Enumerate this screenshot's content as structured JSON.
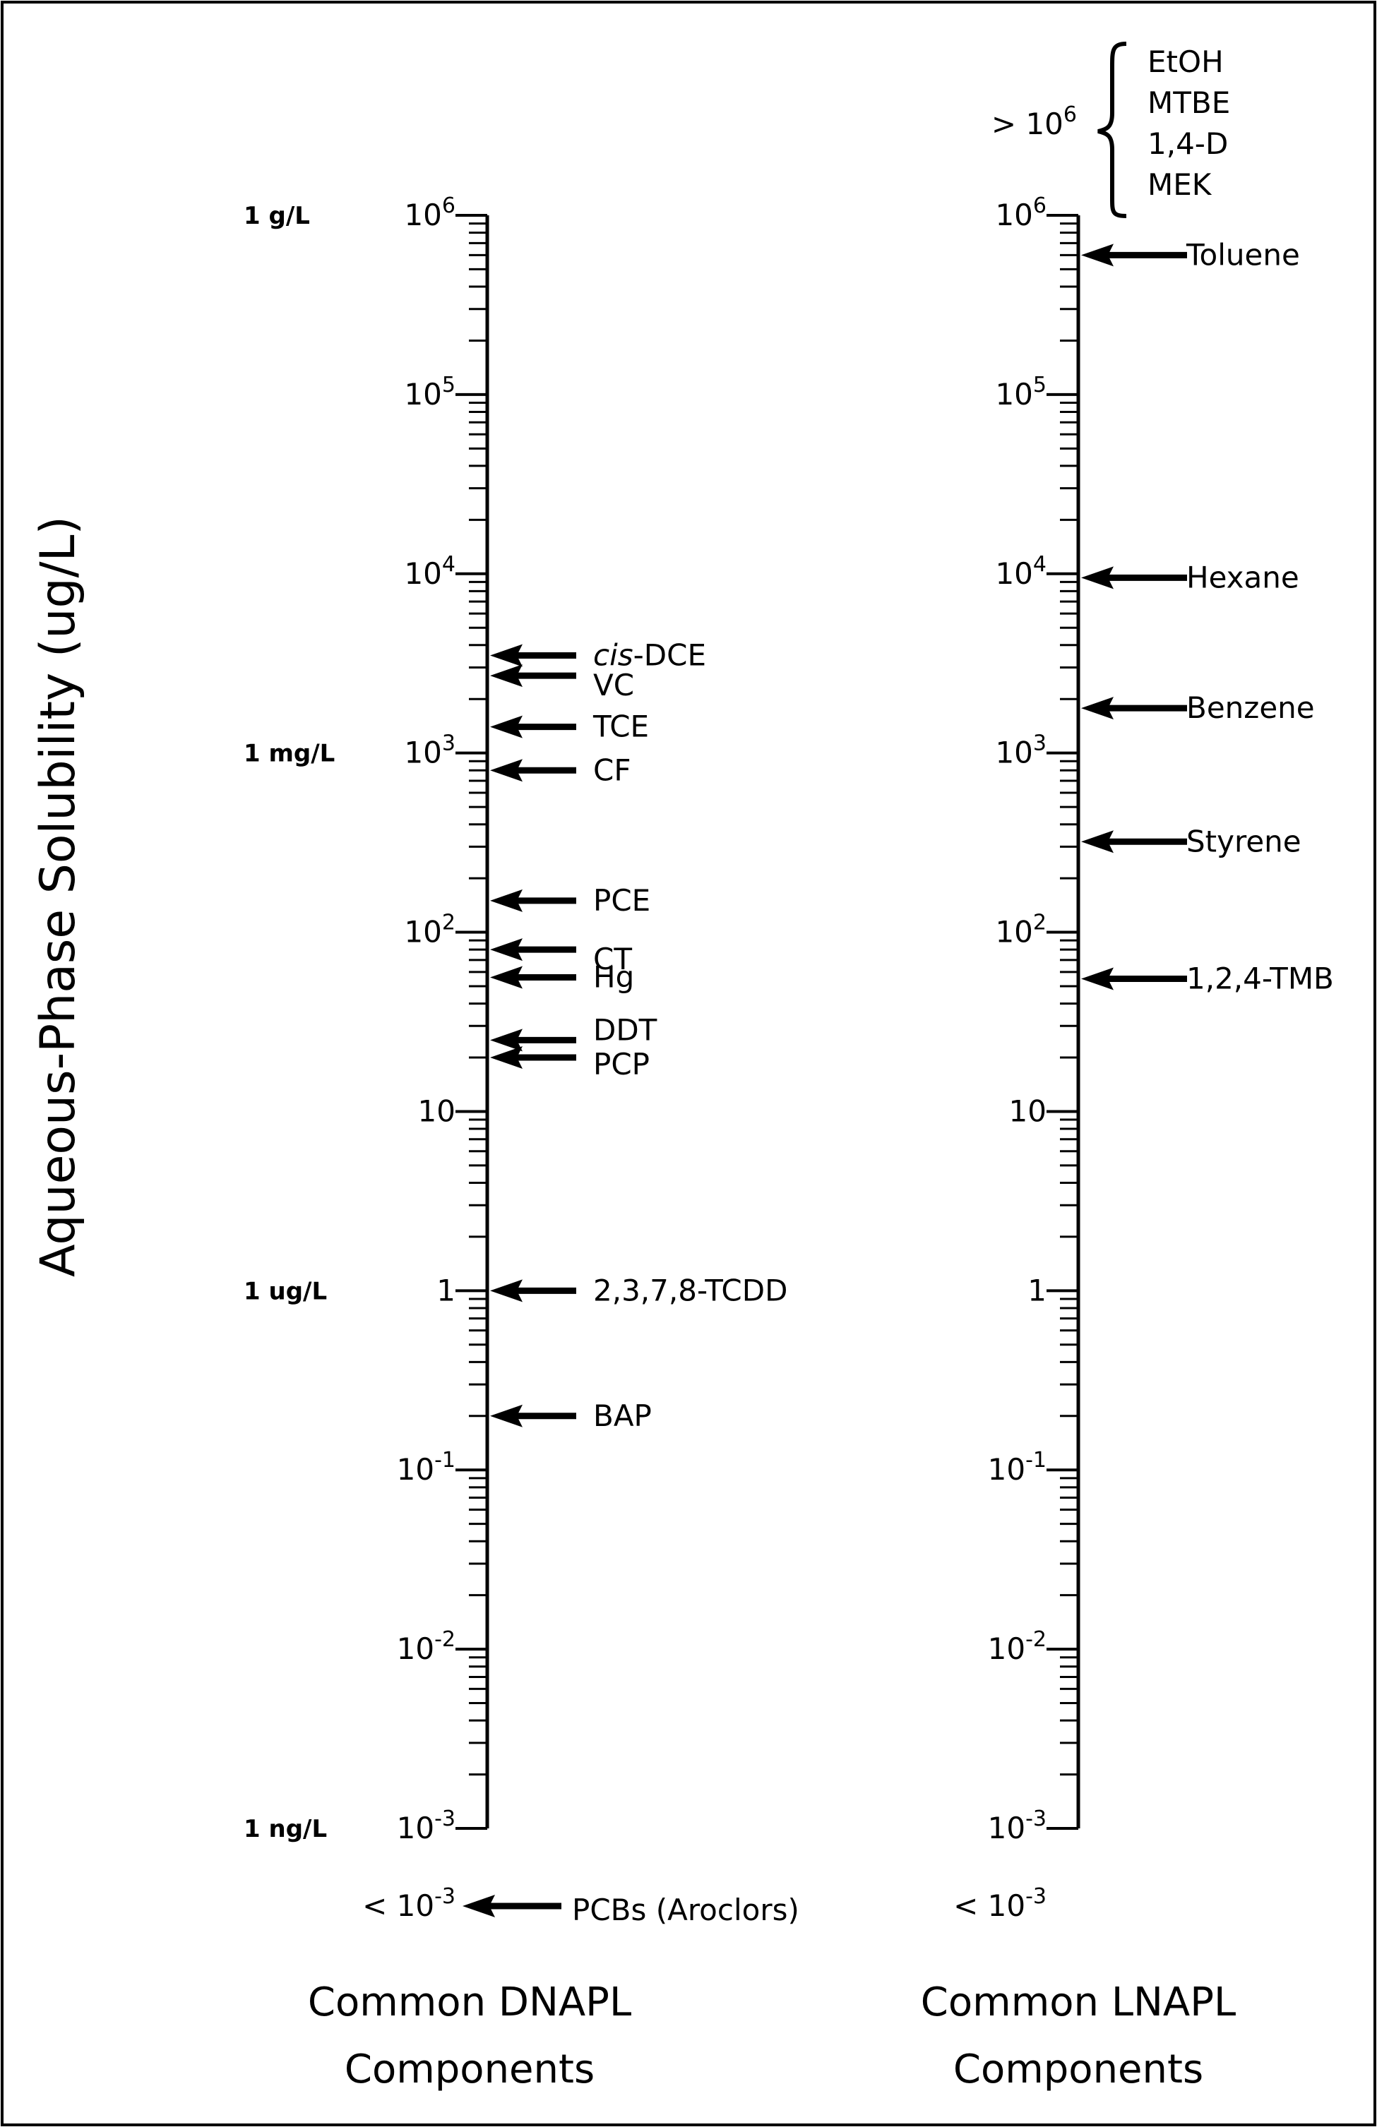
{
  "chart_data": {
    "type": "scatter",
    "ylabel": "Aqueous-Phase Solubility (ug/L)",
    "scale": "log10",
    "ylim": [
      0.001,
      1000000
    ],
    "tick_labels": [
      {
        "value": 1000000,
        "base": "10",
        "exp": "6"
      },
      {
        "value": 100000,
        "base": "10",
        "exp": "5"
      },
      {
        "value": 10000,
        "base": "10",
        "exp": "4"
      },
      {
        "value": 1000,
        "base": "10",
        "exp": "3"
      },
      {
        "value": 100,
        "base": "10",
        "exp": "2"
      },
      {
        "value": 10,
        "base": "10",
        "exp": ""
      },
      {
        "value": 1,
        "base": "1",
        "exp": ""
      },
      {
        "value": 0.1,
        "base": "10",
        "exp": "-1"
      },
      {
        "value": 0.01,
        "base": "10",
        "exp": "-2"
      },
      {
        "value": 0.001,
        "base": "10",
        "exp": "-3"
      }
    ],
    "side_labels": [
      {
        "value": 1000000,
        "text": "1 g/L"
      },
      {
        "value": 1000,
        "text": "1 mg/L"
      },
      {
        "value": 1,
        "text": "1 ug/L"
      },
      {
        "value": 0.001,
        "text": "1 ng/L"
      }
    ],
    "panels": [
      {
        "name": "Common DNAPL Components",
        "label_lines": [
          "Common DNAPL",
          "Components"
        ],
        "points": [
          {
            "label": "cis-DCE",
            "italic_prefix": "cis",
            "rest": "-DCE",
            "value": 3500
          },
          {
            "label": "VC",
            "value": 2700
          },
          {
            "label": "TCE",
            "value": 1400
          },
          {
            "label": "CF",
            "value": 800
          },
          {
            "label": "PCE",
            "value": 150
          },
          {
            "label": "CT",
            "value": 80
          },
          {
            "label": "Hg",
            "value": 56
          },
          {
            "label": "DDT",
            "value": 25
          },
          {
            "label": "PCP",
            "value": 20
          },
          {
            "label": "2,3,7,8-TCDD",
            "value": 1
          },
          {
            "label": "BAP",
            "value": 0.2
          }
        ],
        "below_label": "< 10",
        "below_exp": "-3",
        "below_items": [
          "PCBs (Aroclors)"
        ]
      },
      {
        "name": "Common LNAPL Components",
        "label_lines": [
          "Common LNAPL",
          "Components"
        ],
        "points": [
          {
            "label": "Toluene",
            "value": 600000
          },
          {
            "label": "Hexane",
            "value": 9500
          },
          {
            "label": "Benzene",
            "value": 1780
          },
          {
            "label": "Styrene",
            "value": 320
          },
          {
            "label": "1,2,4-TMB",
            "value": 55
          }
        ],
        "above_label": "> 10",
        "above_exp": "6",
        "above_items": [
          "EtOH",
          "MTBE",
          "1,4-D",
          "MEK"
        ],
        "below_label": "< 10",
        "below_exp": "-3",
        "below_items": []
      }
    ]
  }
}
